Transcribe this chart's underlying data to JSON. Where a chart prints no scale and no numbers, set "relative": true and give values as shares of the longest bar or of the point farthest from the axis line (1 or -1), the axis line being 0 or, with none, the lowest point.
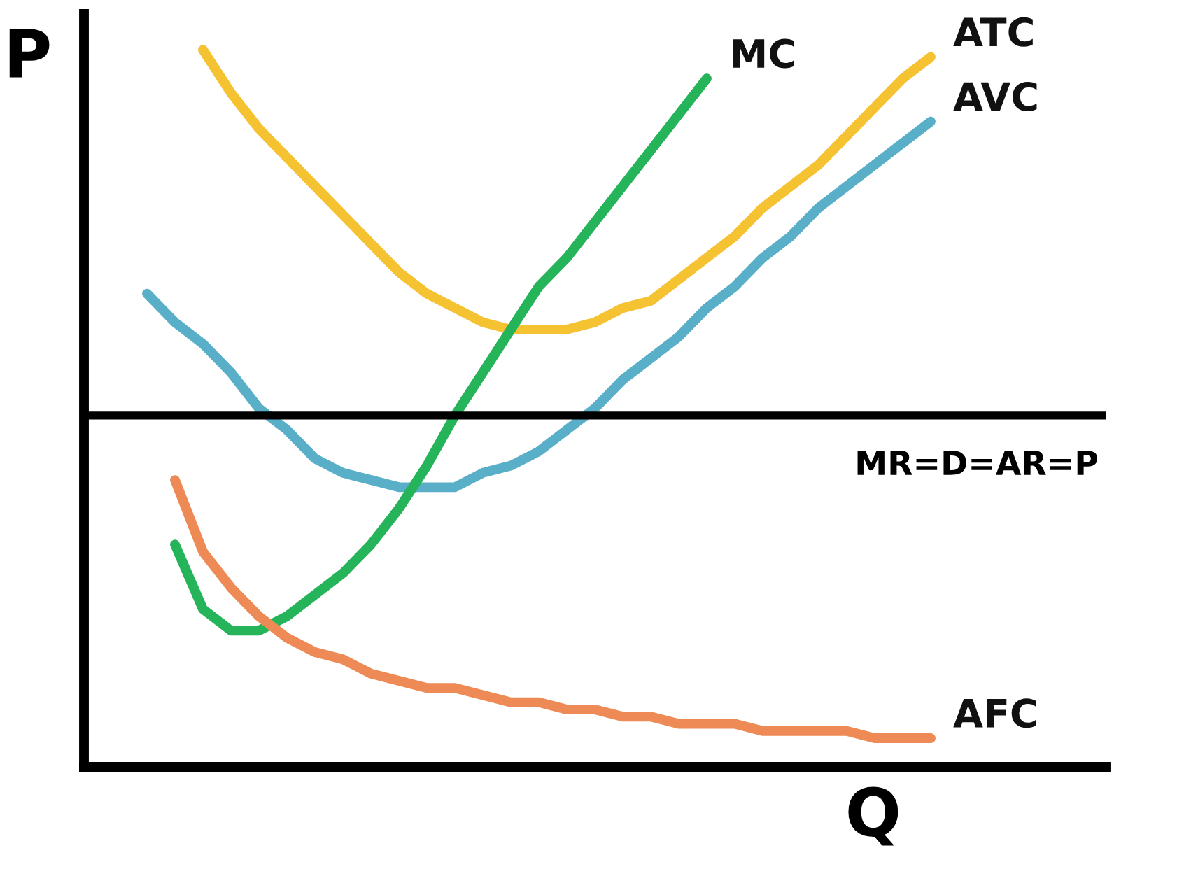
{
  "chart_data": {
    "type": "line",
    "relative": true,
    "xlabel": "Q",
    "ylabel": "P",
    "tick_labels": false,
    "legend": false,
    "categories": [
      null,
      null,
      null,
      null,
      null,
      null,
      null,
      null,
      null,
      null,
      null,
      null,
      null,
      null,
      null,
      null,
      null,
      null,
      null,
      null,
      null,
      null,
      null,
      null,
      null,
      null,
      null,
      null,
      null
    ],
    "series": [
      {
        "name": "ATC",
        "color": "#f5c232",
        "values": [
          null,
          null,
          1.0,
          0.94,
          0.89,
          0.85,
          0.81,
          0.77,
          0.73,
          0.69,
          0.66,
          0.64,
          0.62,
          0.61,
          0.61,
          0.61,
          0.62,
          0.64,
          0.65,
          0.68,
          0.71,
          0.74,
          0.78,
          0.81,
          0.84,
          0.88,
          0.92,
          0.96,
          0.99
        ]
      },
      {
        "name": "AVC",
        "color": "#5aafc8",
        "values": [
          0.66,
          0.62,
          0.59,
          0.55,
          0.5,
          0.47,
          0.43,
          0.41,
          0.4,
          0.39,
          0.39,
          0.39,
          0.41,
          0.42,
          0.44,
          0.47,
          0.5,
          0.54,
          0.57,
          0.6,
          0.64,
          0.67,
          0.71,
          0.74,
          0.78,
          0.81,
          0.84,
          0.87,
          0.9
        ]
      },
      {
        "name": "MC",
        "color": "#25b45a",
        "values": [
          null,
          0.31,
          0.22,
          0.19,
          0.19,
          0.21,
          0.24,
          0.27,
          0.31,
          0.36,
          0.42,
          0.49,
          0.55,
          0.61,
          0.67,
          0.71,
          0.76,
          0.81,
          0.86,
          0.91,
          0.96,
          null,
          null,
          null,
          null,
          null,
          null,
          null,
          null
        ]
      },
      {
        "name": "AFC",
        "color": "#ee8a55",
        "values": [
          null,
          0.4,
          0.3,
          0.25,
          0.21,
          0.18,
          0.16,
          0.15,
          0.13,
          0.12,
          0.11,
          0.11,
          0.1,
          0.09,
          0.09,
          0.08,
          0.08,
          0.07,
          0.07,
          0.06,
          0.06,
          0.06,
          0.05,
          0.05,
          0.05,
          0.05,
          0.04,
          0.04,
          0.04
        ]
      }
    ],
    "ref_lines": [
      {
        "axis": "y",
        "value": 0.49,
        "label": "MR=D=AR=P",
        "color": "#000000"
      }
    ]
  }
}
